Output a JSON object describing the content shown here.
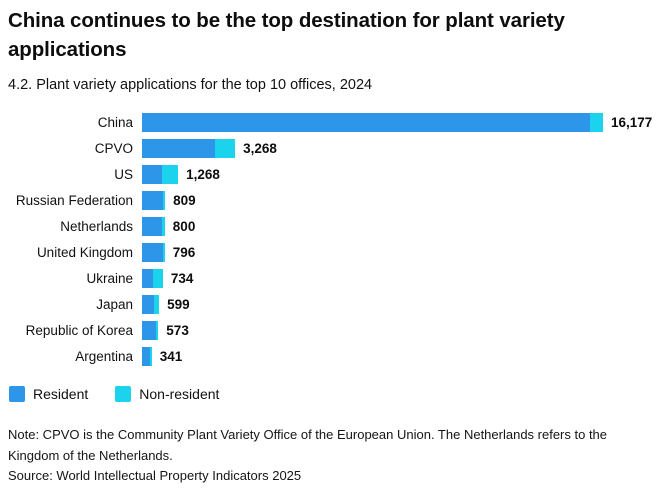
{
  "header": {
    "title": "China continues to be the top destination for plant variety applications",
    "subtitle": "4.2. Plant variety applications for the top 10 offices, 2024"
  },
  "chart_data": {
    "type": "bar",
    "orientation": "horizontal",
    "stacked": true,
    "title": "4.2. Plant variety applications for the top 10 offices, 2024",
    "categories": [
      "China",
      "CPVO",
      "US",
      "Russian Federation",
      "Netherlands",
      "United Kingdom",
      "Ukraine",
      "Japan",
      "Republic of Korea",
      "Argentina"
    ],
    "totals": [
      16177,
      3268,
      1268,
      809,
      800,
      796,
      734,
      599,
      573,
      341
    ],
    "total_labels": [
      "16,177",
      "3,268",
      "1,268",
      "809",
      "800",
      "796",
      "734",
      "599",
      "573",
      "341"
    ],
    "series": [
      {
        "name": "Resident",
        "color": "#2d96e9",
        "values": [
          15720,
          2545,
          691,
          739,
          695,
          761,
          375,
          404,
          503,
          290
        ]
      },
      {
        "name": "Non-resident",
        "color": "#1cd3ee",
        "values": [
          457,
          723,
          577,
          70,
          105,
          35,
          359,
          195,
          70,
          51
        ]
      }
    ],
    "xlim": [
      0,
      16177
    ],
    "grid": false,
    "value_labels": "bold, right of bar end",
    "legend_position": "bottom-left",
    "note": "Series values estimated from segment proportions; totals are labeled on chart."
  },
  "legend": {
    "items": [
      {
        "label": "Resident",
        "color": "#2d96e9"
      },
      {
        "label": "Non-resident",
        "color": "#1cd3ee"
      }
    ]
  },
  "footer": {
    "note": "Note: CPVO is the Community Plant Variety Office of the European Union. The Netherlands refers to the Kingdom of the Netherlands.",
    "source": "Source: World Intellectual Property Indicators 2025"
  }
}
